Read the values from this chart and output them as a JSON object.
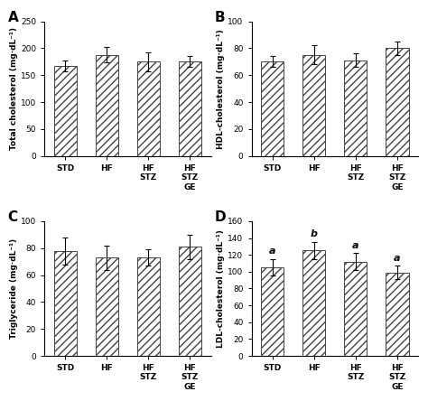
{
  "panels": [
    {
      "label": "A",
      "ylabel": "Total cholesterol (mg·dL⁻¹)",
      "ylim": [
        0,
        250
      ],
      "yticks": [
        0,
        50,
        100,
        150,
        200,
        250
      ],
      "values": [
        167,
        188,
        175,
        175
      ],
      "errors": [
        10,
        14,
        18,
        10
      ],
      "sig_labels": [
        "",
        "",
        "",
        ""
      ],
      "categories": [
        "STD",
        "HF",
        "HF\nSTZ",
        "HF\nSTZ\nGE"
      ]
    },
    {
      "label": "B",
      "ylabel": "HDL-cholesterol (mg·dL⁻¹)",
      "ylim": [
        0,
        100
      ],
      "yticks": [
        0,
        20,
        40,
        60,
        80,
        100
      ],
      "values": [
        70,
        75,
        71,
        80
      ],
      "errors": [
        4,
        7,
        5,
        5
      ],
      "sig_labels": [
        "",
        "",
        "",
        ""
      ],
      "categories": [
        "STD",
        "HF",
        "HF\nSTZ",
        "HF\nSTZ\nGE"
      ]
    },
    {
      "label": "C",
      "ylabel": "Triglyceride (mg·dL⁻¹)",
      "ylim": [
        0,
        100
      ],
      "yticks": [
        0,
        20,
        40,
        60,
        80,
        100
      ],
      "values": [
        78,
        73,
        73,
        81
      ],
      "errors": [
        10,
        9,
        6,
        9
      ],
      "sig_labels": [
        "",
        "",
        "",
        ""
      ],
      "categories": [
        "STD",
        "HF",
        "HF\nSTZ",
        "HF\nSTZ\nGE"
      ]
    },
    {
      "label": "D",
      "ylabel": "LDL-cholesterol (mg·dL⁻¹)",
      "ylim": [
        0,
        160
      ],
      "yticks": [
        0,
        20,
        40,
        60,
        80,
        100,
        120,
        140,
        160
      ],
      "values": [
        105,
        125,
        112,
        99
      ],
      "errors": [
        10,
        10,
        10,
        8
      ],
      "sig_labels": [
        "a",
        "b",
        "a",
        "a"
      ],
      "categories": [
        "STD",
        "HF",
        "HF\nSTZ",
        "HF\nSTZ\nGE"
      ]
    }
  ],
  "bar_color": "white",
  "hatch": "////",
  "edgecolor": "#444444",
  "capsize": 2.5,
  "bar_width": 0.55
}
